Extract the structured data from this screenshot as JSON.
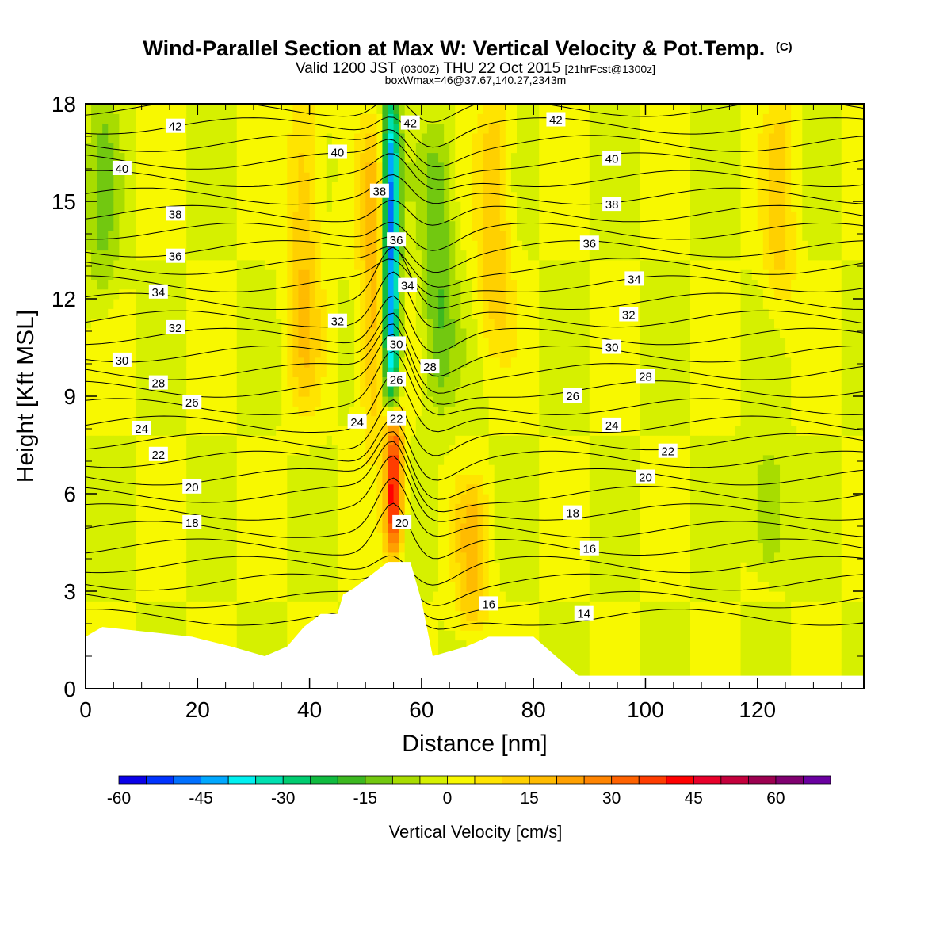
{
  "chart_data": {
    "type": "heatmap",
    "title": "Wind-Parallel Section at Max W: Vertical Velocity & Pot.Temp.",
    "title_mark": "(C)",
    "subtitle_parts": [
      "Valid 1200 JST",
      "(0300Z)",
      "THU 22 Oct 2015",
      "[21hrFcst@1300z]"
    ],
    "subtitle2": "boxWmax=46@37.67,140.27,2343m",
    "xlabel": "Distance [nm]",
    "ylabel": "Height [Kft MSL]",
    "xlim": [
      0,
      139
    ],
    "ylim": [
      0,
      18
    ],
    "x_ticks": [
      0,
      20,
      40,
      60,
      80,
      100,
      120
    ],
    "x_tick_labels": [
      "0",
      "20",
      "40",
      "60",
      "80",
      "100",
      "120"
    ],
    "y_ticks": [
      0,
      3,
      6,
      9,
      12,
      15,
      18
    ],
    "y_tick_labels": [
      "0",
      "3",
      "6",
      "9",
      "12",
      "15",
      "18"
    ],
    "colorbar": {
      "title": "Vertical Velocity [cm/s]",
      "min": -60,
      "max": 70,
      "step": 5,
      "tick_values": [
        -60,
        -45,
        -30,
        -15,
        0,
        15,
        30,
        45,
        60
      ],
      "tick_labels": [
        "-60",
        "-45",
        "-30",
        "-15",
        "0",
        "15",
        "30",
        "45",
        "60"
      ],
      "colors": [
        "#0a00e8",
        "#0033ff",
        "#0070ff",
        "#00a8ff",
        "#00f0f0",
        "#00e0b0",
        "#00cc70",
        "#10bb40",
        "#3cb820",
        "#72c810",
        "#a8dc00",
        "#d6f000",
        "#f8f800",
        "#ffe400",
        "#ffd000",
        "#ffbb00",
        "#ffa000",
        "#ff8400",
        "#ff6200",
        "#ff3c00",
        "#ff0000",
        "#e8002a",
        "#c4003c",
        "#9c0050",
        "#800070",
        "#6a00a0"
      ]
    },
    "vertical_velocity_features": [
      {
        "x": 55,
        "y_range": [
          4.5,
          8.3
        ],
        "value": 46,
        "note": "updraft core"
      },
      {
        "x": 54.5,
        "y_range": [
          8.5,
          18
        ],
        "value": -55,
        "note": "downdraft column"
      },
      {
        "x": 52,
        "y_range": [
          8,
          17
        ],
        "value": 20
      },
      {
        "x": 39,
        "y_range": [
          9,
          18
        ],
        "value": 15
      },
      {
        "x": 63,
        "y_range": [
          9,
          17
        ],
        "value": -15
      },
      {
        "x": 69,
        "y_range": [
          2,
          6
        ],
        "value": 15
      },
      {
        "x": 73,
        "y_range": [
          11,
          18
        ],
        "value": 15
      },
      {
        "x": 122,
        "y_range": [
          4,
          7
        ],
        "value": -12
      },
      {
        "x": 124,
        "y_range": [
          12,
          18
        ],
        "value": 12
      },
      {
        "x": 3,
        "y_range": [
          12,
          18
        ],
        "value": -10
      }
    ],
    "terrain_height": [
      {
        "x": 0,
        "y": 1.6
      },
      {
        "x": 3,
        "y": 1.9
      },
      {
        "x": 19,
        "y": 1.6
      },
      {
        "x": 26,
        "y": 1.3
      },
      {
        "x": 32,
        "y": 1.0
      },
      {
        "x": 36,
        "y": 1.3
      },
      {
        "x": 39,
        "y": 1.9
      },
      {
        "x": 42,
        "y": 2.3
      },
      {
        "x": 44.5,
        "y": 2.3
      },
      {
        "x": 45,
        "y": 2.3
      },
      {
        "x": 46,
        "y": 2.9
      },
      {
        "x": 48,
        "y": 3.1
      },
      {
        "x": 51,
        "y": 3.5
      },
      {
        "x": 54,
        "y": 3.9
      },
      {
        "x": 58,
        "y": 3.9
      },
      {
        "x": 60,
        "y": 2.7
      },
      {
        "x": 62,
        "y": 1.0
      },
      {
        "x": 68,
        "y": 1.3
      },
      {
        "x": 72,
        "y": 1.6
      },
      {
        "x": 80,
        "y": 1.6
      },
      {
        "x": 84,
        "y": 1.0
      },
      {
        "x": 88,
        "y": 0.4
      },
      {
        "x": 139,
        "y": 0.4
      }
    ],
    "potential_temperature_labels": [
      {
        "text": "42",
        "x": 16,
        "y": 17.3
      },
      {
        "text": "42",
        "x": 58,
        "y": 17.4
      },
      {
        "text": "42",
        "x": 84,
        "y": 17.5
      },
      {
        "text": "40",
        "x": 6.5,
        "y": 16.0
      },
      {
        "text": "40",
        "x": 45,
        "y": 16.5
      },
      {
        "text": "40",
        "x": 94,
        "y": 16.3
      },
      {
        "text": "38",
        "x": 52.5,
        "y": 15.3
      },
      {
        "text": "38",
        "x": 16,
        "y": 14.6
      },
      {
        "text": "38",
        "x": 94,
        "y": 14.9
      },
      {
        "text": "36",
        "x": 55.5,
        "y": 13.8
      },
      {
        "text": "36",
        "x": 16,
        "y": 13.3
      },
      {
        "text": "36",
        "x": 90,
        "y": 13.7
      },
      {
        "text": "34",
        "x": 57.5,
        "y": 12.4
      },
      {
        "text": "34",
        "x": 98,
        "y": 12.6
      },
      {
        "text": "34",
        "x": 13,
        "y": 12.2
      },
      {
        "text": "32",
        "x": 45,
        "y": 11.3
      },
      {
        "text": "32",
        "x": 16,
        "y": 11.1
      },
      {
        "text": "32",
        "x": 97,
        "y": 11.5
      },
      {
        "text": "30",
        "x": 55.5,
        "y": 10.6
      },
      {
        "text": "30",
        "x": 6.5,
        "y": 10.1
      },
      {
        "text": "30",
        "x": 94,
        "y": 10.5
      },
      {
        "text": "28",
        "x": 61.5,
        "y": 9.9
      },
      {
        "text": "28",
        "x": 13,
        "y": 9.4
      },
      {
        "text": "28",
        "x": 100,
        "y": 9.6
      },
      {
        "text": "26",
        "x": 55.5,
        "y": 9.5
      },
      {
        "text": "26",
        "x": 19,
        "y": 8.8
      },
      {
        "text": "26",
        "x": 87,
        "y": 9.0
      },
      {
        "text": "24",
        "x": 48.5,
        "y": 8.2
      },
      {
        "text": "24",
        "x": 10,
        "y": 8.0
      },
      {
        "text": "24",
        "x": 94,
        "y": 8.1
      },
      {
        "text": "22",
        "x": 55.5,
        "y": 8.3
      },
      {
        "text": "22",
        "x": 13,
        "y": 7.2
      },
      {
        "text": "22",
        "x": 104,
        "y": 7.3
      },
      {
        "text": "20",
        "x": 19,
        "y": 6.2
      },
      {
        "text": "20",
        "x": 100,
        "y": 6.5
      },
      {
        "text": "20",
        "x": 56.5,
        "y": 5.1
      },
      {
        "text": "18",
        "x": 19,
        "y": 5.1
      },
      {
        "text": "18",
        "x": 87,
        "y": 5.4
      },
      {
        "text": "16",
        "x": 90,
        "y": 4.3
      },
      {
        "text": "16",
        "x": 72,
        "y": 2.6
      },
      {
        "text": "14",
        "x": 89,
        "y": 2.3
      }
    ]
  }
}
